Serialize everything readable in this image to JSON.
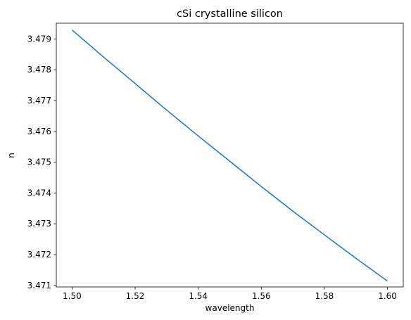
{
  "chart_data": {
    "type": "line",
    "title": "cSi crystalline silicon",
    "xlabel": "wavelength",
    "ylabel": "n",
    "xlim": [
      1.495,
      1.605
    ],
    "ylim": [
      3.47095,
      3.47951
    ],
    "xticks": [
      1.5,
      1.52,
      1.54,
      1.56,
      1.58,
      1.6
    ],
    "xtick_labels": [
      "1.50",
      "1.52",
      "1.54",
      "1.56",
      "1.58",
      "1.60"
    ],
    "yticks": [
      3.471,
      3.472,
      3.473,
      3.474,
      3.475,
      3.476,
      3.477,
      3.478,
      3.479
    ],
    "ytick_labels": [
      "3.471",
      "3.472",
      "3.473",
      "3.474",
      "3.475",
      "3.476",
      "3.477",
      "3.478",
      "3.479"
    ],
    "grid": false,
    "series": [
      {
        "color": "#1f77b4",
        "x": [
          1.5,
          1.51,
          1.52,
          1.53,
          1.54,
          1.55,
          1.56,
          1.57,
          1.58,
          1.59,
          1.6
        ],
        "y": [
          3.47929,
          3.47841,
          3.47755,
          3.47669,
          3.47585,
          3.47503,
          3.47421,
          3.47341,
          3.47264,
          3.47188,
          3.47114
        ]
      }
    ]
  }
}
